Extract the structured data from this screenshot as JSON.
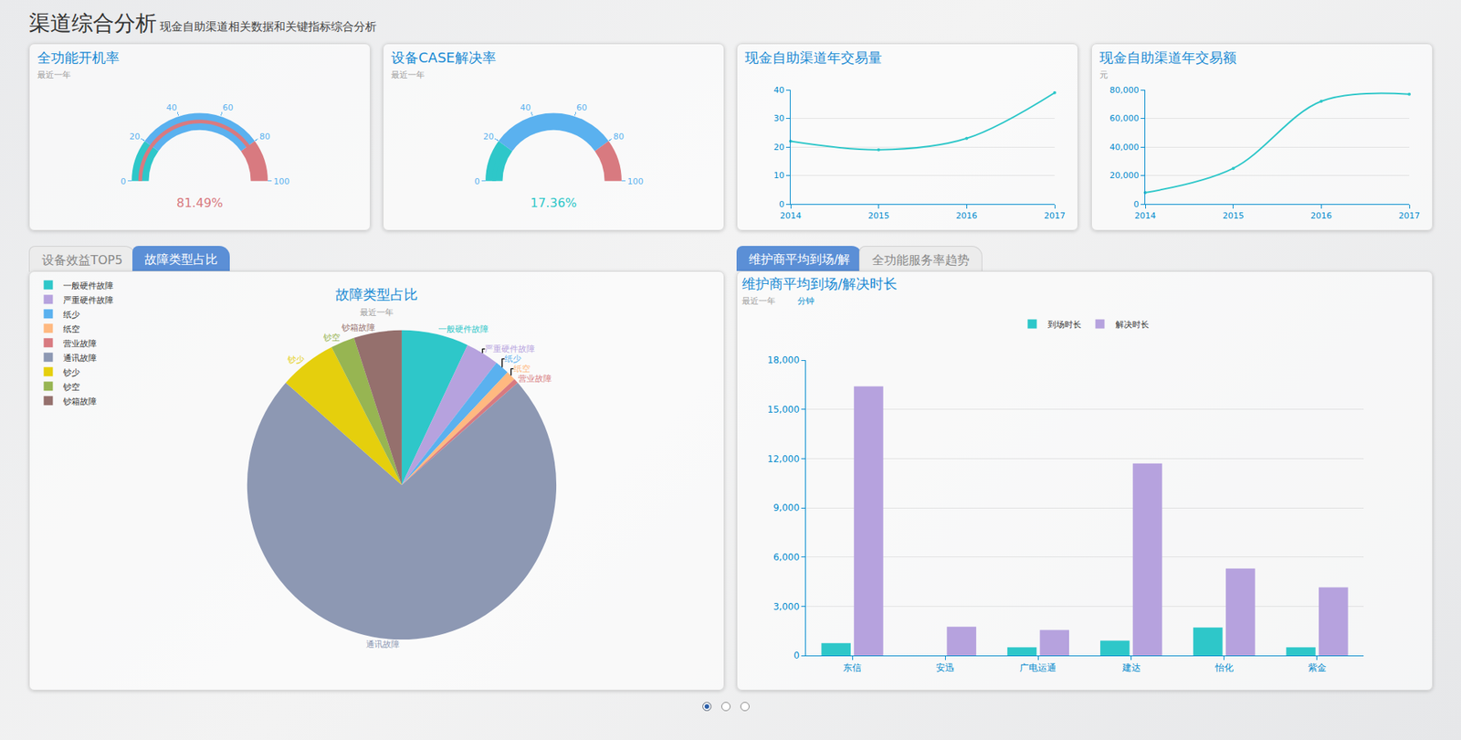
{
  "header": {
    "title": "渠道综合分析",
    "subtitle": "现金自助渠道相关数据和关键指标综合分析"
  },
  "tabs": {
    "left": [
      {
        "label": "设备效益TOP5",
        "active": false
      },
      {
        "label": "故障类型占比",
        "active": true
      }
    ],
    "right": [
      {
        "label": "维护商平均到场/解",
        "active": true
      },
      {
        "label": "全功能服务率趋势",
        "active": false
      }
    ]
  },
  "pager": {
    "pages": 3,
    "current": 1
  },
  "chart_data": [
    {
      "type": "gauge",
      "title": "全功能开机率",
      "subtitle": "最近一年",
      "values": [
        81.49
      ],
      "value_labels": [
        "81.49%"
      ],
      "ylim": [
        0,
        100
      ],
      "yticks": [
        0,
        20,
        40,
        60,
        80,
        100
      ],
      "color": "#d87a80"
    },
    {
      "type": "gauge",
      "title": "设备CASE解决率",
      "subtitle": "最近一年",
      "values": [
        17.36
      ],
      "value_labels": [
        "17.36%"
      ],
      "ylim": [
        0,
        100
      ],
      "yticks": [
        0,
        20,
        40,
        60,
        80,
        100
      ],
      "color": "#2ec7c9"
    },
    {
      "type": "line",
      "title": "现金自助渠道年交易量",
      "x": [
        2014,
        2015,
        2016,
        2017
      ],
      "values": [
        22,
        19,
        23,
        39
      ],
      "xlim": [
        2014,
        2017
      ],
      "xticks": [
        2014,
        2015,
        2016,
        2017
      ],
      "ylim": [
        0,
        40
      ],
      "yticks": [
        0,
        10,
        20,
        30,
        40
      ],
      "color": "#2ec7c9",
      "marker": "circle",
      "grid": true
    },
    {
      "type": "line",
      "title": "现金自助渠道年交易额",
      "subtitle": "元",
      "x": [
        2014,
        2015,
        2016,
        2017
      ],
      "values": [
        8000,
        25000,
        72000,
        77000
      ],
      "xlim": [
        2014,
        2017
      ],
      "xticks": [
        2014,
        2015,
        2016,
        2017
      ],
      "ylim": [
        0,
        80000
      ],
      "yticks": [
        0,
        {
          "value": 20000,
          "label": "20,000"
        },
        {
          "value": 40000,
          "label": "40,000"
        },
        {
          "value": 60000,
          "label": "60,000"
        },
        {
          "value": 80000,
          "label": "80,000"
        }
      ],
      "color": "#2ec7c9",
      "marker": "circle",
      "grid": true
    },
    {
      "type": "pie",
      "title": "故障类型占比",
      "subtitle": "最近一年",
      "categories": [
        "一般硬件故障",
        "严重硬件故障",
        "纸少",
        "纸空",
        "营业故障",
        "通讯故障",
        "钞少",
        "钞空",
        "钞箱故障"
      ],
      "values": [
        7,
        3.5,
        1.5,
        1,
        0.5,
        73,
        6,
        2.5,
        5
      ],
      "colors": [
        "#2ec7c9",
        "#b6a2de",
        "#5ab1ef",
        "#ffb980",
        "#d87a80",
        "#8d98b3",
        "#e5cf0d",
        "#97b552",
        "#95706d"
      ],
      "legend": "top left"
    },
    {
      "type": "bar",
      "title": "维护商平均到场/解决时长",
      "subtitle": "最近一年",
      "ylabel": "分钟",
      "categories": [
        "东信",
        "安迅",
        "广电运通",
        "建达",
        "怡化",
        "紫金"
      ],
      "series": [
        {
          "name": "到场时长",
          "color": "#2ec7c9",
          "values": [
            750,
            0,
            500,
            900,
            1700,
            500
          ]
        },
        {
          "name": "解决时长",
          "color": "#b6a2de",
          "values": [
            16400,
            1750,
            1550,
            11700,
            5300,
            4150
          ]
        }
      ],
      "ylim": [
        0,
        18000
      ],
      "yticks": [
        0,
        {
          "value": 3000,
          "label": "3,000"
        },
        {
          "value": 6000,
          "label": "6,000"
        },
        {
          "value": 9000,
          "label": "9,000"
        },
        {
          "value": 12000,
          "label": "12,000"
        },
        {
          "value": 15000,
          "label": "15,000"
        },
        {
          "value": 18000,
          "label": "18,000"
        }
      ],
      "legend": "top",
      "grid": true
    }
  ]
}
